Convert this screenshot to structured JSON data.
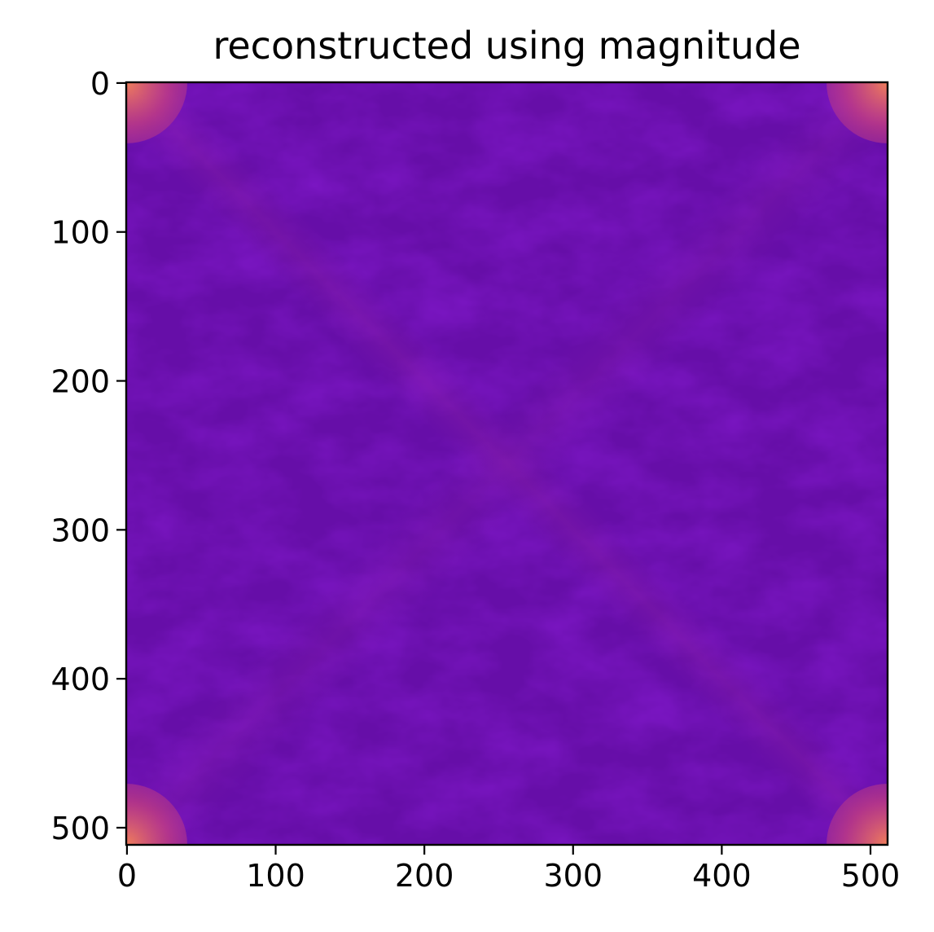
{
  "chart_data": {
    "type": "heatmap",
    "title": "reconstructed using magnitude",
    "xlabel": "",
    "ylabel": "",
    "xlim": [
      0,
      511
    ],
    "ylim": [
      511,
      0
    ],
    "image_size": [
      512,
      512
    ],
    "colormap": "plasma",
    "x_ticks": [
      0,
      100,
      200,
      300,
      400,
      500
    ],
    "y_ticks": [
      0,
      100,
      200,
      300,
      400,
      500
    ],
    "x_tick_labels": [
      "0",
      "100",
      "200",
      "300",
      "400",
      "500"
    ],
    "y_tick_labels": [
      "0",
      "100",
      "200",
      "300",
      "400",
      "500"
    ],
    "grid": false,
    "colors": {
      "base": "#5a0aa8",
      "dark": "#3b04a0",
      "light": "#7f18a8",
      "corner": "#f07f5a"
    }
  }
}
